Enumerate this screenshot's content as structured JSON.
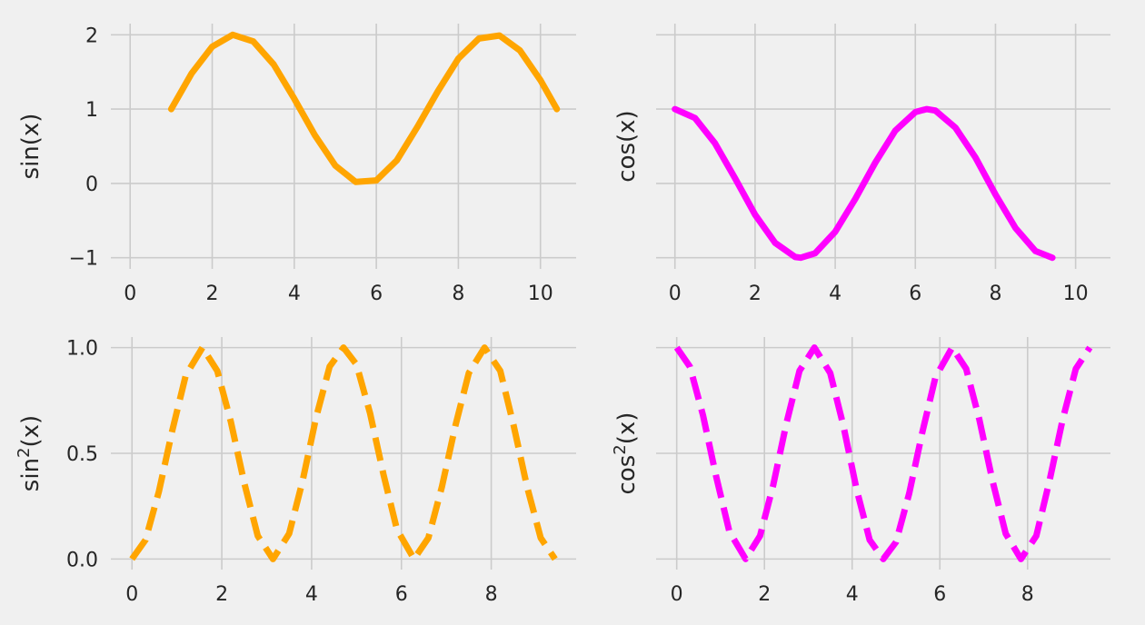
{
  "chart_data": [
    {
      "type": "line",
      "ylabel": "sin(x)",
      "ylabel_sup": "",
      "ylabel_suffix": "",
      "xlim": [
        -0.47,
        10.87
      ],
      "ylim": [
        -1.15,
        2.15
      ],
      "xticks": [
        0,
        2,
        4,
        6,
        8,
        10
      ],
      "xtick_labels": [
        "0",
        "2",
        "4",
        "6",
        "8",
        "10"
      ],
      "yticks": [
        -1,
        0,
        1,
        2
      ],
      "ytick_labels": [
        "−1",
        "0",
        "1",
        "2"
      ],
      "grid": true,
      "series": [
        {
          "color": "#ffa500",
          "linestyle": "solid",
          "x": [
            1.0,
            1.5,
            2.0,
            2.5,
            3.0,
            3.5,
            4.0,
            4.5,
            5.0,
            5.5,
            6.0,
            6.5,
            7.0,
            7.5,
            8.0,
            8.5,
            9.0,
            9.5,
            10.0,
            10.4
          ],
          "y": [
            1.0,
            1.48,
            1.84,
            2.0,
            1.91,
            1.6,
            1.14,
            0.65,
            0.24,
            0.02,
            0.04,
            0.31,
            0.76,
            1.24,
            1.68,
            1.95,
            1.99,
            1.79,
            1.39,
            1.0
          ]
        }
      ]
    },
    {
      "type": "line",
      "ylabel": "cos(x)",
      "ylabel_sup": "",
      "ylabel_suffix": "",
      "xlim": [
        -0.47,
        10.87
      ],
      "ylim": [
        -1.15,
        2.15
      ],
      "xticks": [
        0,
        2,
        4,
        6,
        8,
        10
      ],
      "xtick_labels": [
        "0",
        "2",
        "4",
        "6",
        "8",
        "10"
      ],
      "yticks": [
        -1,
        0,
        1,
        2
      ],
      "ytick_labels": [],
      "grid": true,
      "series": [
        {
          "color": "#ff00ff",
          "linestyle": "solid",
          "x": [
            0.0,
            0.5,
            1.0,
            1.5,
            2.0,
            2.5,
            3.0,
            3.14,
            3.5,
            4.0,
            4.5,
            5.0,
            5.5,
            6.0,
            6.28,
            6.5,
            7.0,
            7.5,
            8.0,
            8.5,
            9.0,
            9.42
          ],
          "y": [
            1.0,
            0.88,
            0.54,
            0.07,
            -0.42,
            -0.8,
            -0.99,
            -1.0,
            -0.94,
            -0.65,
            -0.21,
            0.28,
            0.71,
            0.96,
            1.0,
            0.98,
            0.75,
            0.35,
            -0.15,
            -0.6,
            -0.91,
            -1.0
          ]
        }
      ]
    },
    {
      "type": "line",
      "ylabel": "sin",
      "ylabel_sup": "2",
      "ylabel_suffix": "(x)",
      "xlim": [
        -0.47,
        9.89
      ],
      "ylim": [
        -0.05,
        1.05
      ],
      "xticks": [
        0,
        2,
        4,
        6,
        8
      ],
      "xtick_labels": [
        "0",
        "2",
        "4",
        "6",
        "8"
      ],
      "yticks": [
        0.0,
        0.5,
        1.0
      ],
      "ytick_labels": [
        "0.0",
        "0.5",
        "1.0"
      ],
      "grid": true,
      "series": [
        {
          "color": "#ffa500",
          "linestyle": "dashed",
          "x": [
            0.0,
            0.3,
            0.6,
            0.9,
            1.2,
            1.57,
            1.9,
            2.2,
            2.5,
            2.8,
            3.14,
            3.5,
            3.8,
            4.1,
            4.4,
            4.71,
            5.0,
            5.3,
            5.6,
            5.9,
            6.28,
            6.6,
            6.9,
            7.2,
            7.5,
            7.85,
            8.2,
            8.5,
            8.8,
            9.1,
            9.42
          ],
          "y": [
            0.0,
            0.09,
            0.32,
            0.61,
            0.87,
            1.0,
            0.89,
            0.65,
            0.36,
            0.11,
            0.0,
            0.12,
            0.37,
            0.67,
            0.91,
            1.0,
            0.92,
            0.69,
            0.4,
            0.14,
            0.0,
            0.1,
            0.34,
            0.63,
            0.88,
            1.0,
            0.89,
            0.63,
            0.34,
            0.1,
            0.0
          ]
        }
      ]
    },
    {
      "type": "line",
      "ylabel": "cos",
      "ylabel_sup": "2",
      "ylabel_suffix": "(x)",
      "xlim": [
        -0.47,
        9.89
      ],
      "ylim": [
        -0.05,
        1.05
      ],
      "xticks": [
        0,
        2,
        4,
        6,
        8
      ],
      "xtick_labels": [
        "0",
        "2",
        "4",
        "6",
        "8"
      ],
      "yticks": [
        0.0,
        0.5,
        1.0
      ],
      "ytick_labels": [],
      "grid": true,
      "series": [
        {
          "color": "#ff00ff",
          "linestyle": "dashed",
          "x": [
            0.0,
            0.3,
            0.6,
            0.9,
            1.2,
            1.57,
            1.9,
            2.2,
            2.5,
            2.8,
            3.14,
            3.5,
            3.8,
            4.1,
            4.4,
            4.71,
            5.0,
            5.3,
            5.6,
            5.9,
            6.28,
            6.6,
            6.9,
            7.2,
            7.5,
            7.85,
            8.2,
            8.5,
            8.8,
            9.1,
            9.42
          ],
          "y": [
            1.0,
            0.91,
            0.68,
            0.39,
            0.13,
            0.0,
            0.11,
            0.35,
            0.64,
            0.89,
            1.0,
            0.88,
            0.63,
            0.33,
            0.09,
            0.0,
            0.08,
            0.31,
            0.6,
            0.86,
            1.0,
            0.9,
            0.66,
            0.37,
            0.12,
            0.0,
            0.11,
            0.37,
            0.66,
            0.9,
            1.0
          ]
        }
      ]
    }
  ]
}
